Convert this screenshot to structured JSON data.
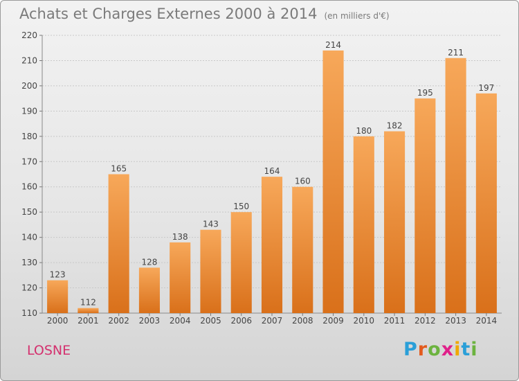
{
  "header": {
    "title": "Achats et Charges Externes 2000 à 2014",
    "subtitle": "(en milliers d'€)"
  },
  "footer": {
    "city": "LOSNE",
    "brand_letters": [
      "P",
      "r",
      "o",
      "x",
      "i",
      "t",
      "i"
    ],
    "brand_colors": [
      "#2a9fd8",
      "#e35b1e",
      "#6cb33f",
      "#e0208a",
      "#f0a800",
      "#2a9fd8",
      "#6cb33f"
    ]
  },
  "colors": {
    "bar": "#f5a04e",
    "bar_dark": "#e07a20",
    "city": "#d4306e"
  },
  "chart_data": {
    "type": "bar",
    "title": "Achats et Charges Externes 2000 à 2014",
    "subtitle": "(en milliers d'€)",
    "categories": [
      "2000",
      "2001",
      "2002",
      "2003",
      "2004",
      "2005",
      "2006",
      "2007",
      "2008",
      "2009",
      "2010",
      "2011",
      "2012",
      "2013",
      "2014"
    ],
    "values": [
      123,
      112,
      165,
      128,
      138,
      143,
      150,
      164,
      160,
      214,
      180,
      182,
      195,
      211,
      197
    ],
    "ylim": [
      110,
      220
    ],
    "yticks": [
      110,
      120,
      130,
      140,
      150,
      160,
      170,
      180,
      190,
      200,
      210,
      220
    ],
    "grid": "horizontal",
    "data_labels": true
  }
}
